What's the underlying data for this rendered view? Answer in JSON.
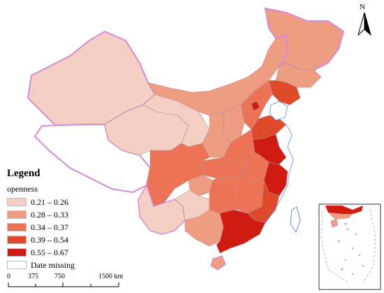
{
  "legend": {
    "title": "Legend",
    "subtitle": "openness",
    "items": [
      {
        "label": "0.21 – 0.26",
        "color": "#f3cfc4"
      },
      {
        "label": "0.28 – 0.33",
        "color": "#ee9c82"
      },
      {
        "label": "0.34 – 0.37",
        "color": "#ec7356"
      },
      {
        "label": "0.39 – 0.54",
        "color": "#e04a2c"
      },
      {
        "label": "0.55 – 0.67",
        "color": "#cf1b12"
      },
      {
        "label": "Date missing",
        "color": "#ffffff"
      }
    ]
  },
  "north_arrow": {
    "letter": "N"
  },
  "scale_bar": {
    "ticks": [
      "0",
      "375",
      "750",
      "1500 km"
    ]
  },
  "colors": {
    "border_glow": "#d58ad8",
    "missing": "#ffffff",
    "province_line": "#b98f8f"
  }
}
